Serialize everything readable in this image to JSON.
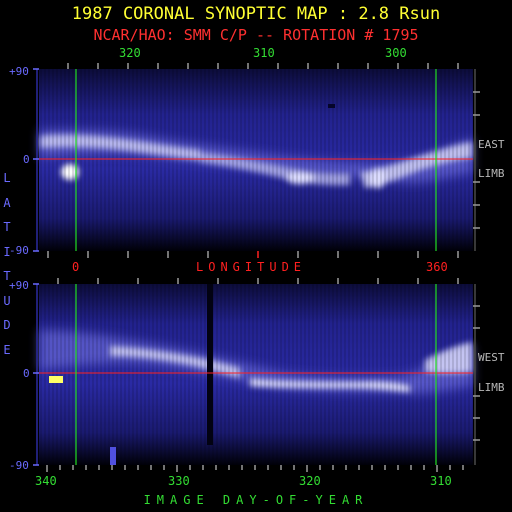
{
  "title": "1987 CORONAL SYNOPTIC MAP : 2.8 Rsun",
  "subtitle": "NCAR/HAO: SMM C/P -- ROTATION # 1795",
  "top_panel": {
    "longitude_ticks": [
      "320",
      "310",
      "300"
    ],
    "lat_top": "+90",
    "lat_mid": "0",
    "lat_bottom": "-90",
    "side_label_1": "EAST",
    "side_label_2": "LIMB"
  },
  "middle_axis": {
    "left_value": "0",
    "label": "LONGITUDE",
    "right_value": "360"
  },
  "bottom_panel": {
    "lat_top": "+90",
    "lat_mid": "0",
    "lat_bottom": "-90",
    "side_label_1": "WEST",
    "side_label_2": "LIMB",
    "day_ticks": [
      "340",
      "330",
      "320",
      "310"
    ],
    "axis_label": "IMAGE DAY-OF-YEAR"
  },
  "side_axis_label": "LATITUDE",
  "colors": {
    "title": "#ffff33",
    "subtitle": "#ff3030",
    "tick_text": "#33dd33",
    "lat_text": "#6a6aff",
    "equator": "#ff2020",
    "boundary": "#22dd22",
    "background_map": "#1e1e8c"
  }
}
